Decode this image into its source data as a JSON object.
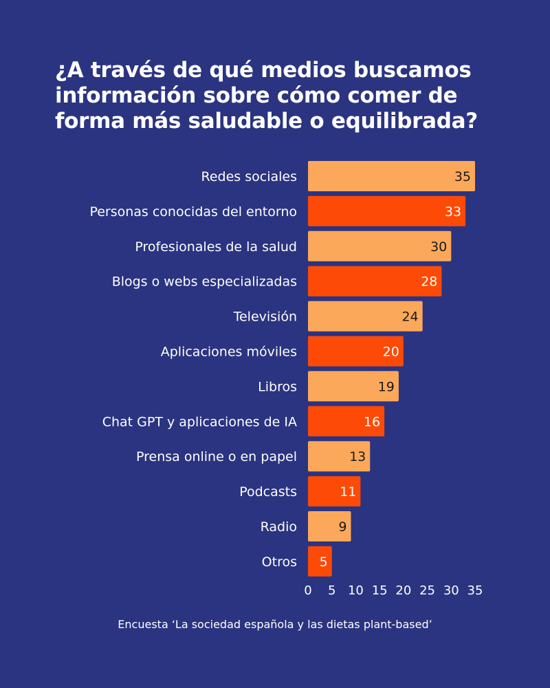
{
  "chart_data": {
    "type": "bar",
    "orientation": "horizontal",
    "title": "¿A través de qué medios buscamos información sobre cómo comer de forma más saludable o equilibrada?",
    "categories": [
      "Redes sociales",
      "Personas conocidas del entorno",
      "Profesionales de la salud",
      "Blogs o webs especializadas",
      "Televisión",
      "Aplicaciones móviles",
      "Libros",
      "Chat GPT y aplicaciones de IA",
      "Prensa online o en papel",
      "Podcasts",
      "Radio",
      "Otros"
    ],
    "values": [
      35,
      33,
      30,
      28,
      24,
      20,
      19,
      16,
      13,
      11,
      9,
      5
    ],
    "xlim": [
      0,
      35
    ],
    "xticks": [
      0,
      5,
      10,
      15,
      20,
      25,
      30,
      35
    ],
    "grid": false,
    "colors": {
      "light_bar": "#fca85a",
      "dark_bar": "#fd4a07",
      "light_value_text": "#1a1a1a",
      "dark_value_text": "#ffffff",
      "background": "#2b3480"
    }
  },
  "source": "Encuesta ‘La sociedad española y las dietas plant-based’"
}
